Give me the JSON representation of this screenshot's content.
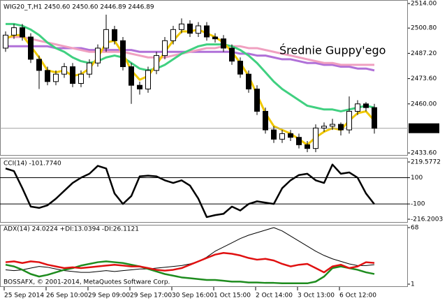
{
  "chart_data": [
    {
      "type": "candlestick",
      "title": "WIG20_T,H1 2450.60 2450.60 2446.89 2446.89",
      "annotation": "Średnie Guppy'ego",
      "copyright": "BOSSAFX, © 2001-2014, MetaQuotes Software Corp.",
      "categories": [
        "25 Sep 2014",
        null,
        null,
        null,
        null,
        "26 Sep 10:00",
        null,
        null,
        null,
        null,
        "29 Sep 09:00",
        null,
        null,
        null,
        null,
        "29 Sep 17:00",
        null,
        null,
        null,
        null,
        "30 Sep 16:00",
        null,
        null,
        null,
        null,
        "1 Oct 15:00",
        null,
        null,
        null,
        null,
        "2 Oct 14:00",
        null,
        null,
        null,
        null,
        "3 Oct 13:00",
        null,
        null,
        null,
        null,
        "6 Oct 12:00",
        null,
        null,
        null,
        null
      ],
      "open": [
        2490,
        2497,
        2501,
        2496,
        2484,
        2478,
        2472,
        2476,
        2480,
        2471,
        2476,
        2482,
        2490,
        2500,
        2494,
        2480,
        2470,
        2468,
        2478,
        2486,
        2494,
        2500,
        2503,
        2498,
        2502,
        2496,
        2495,
        2490,
        2483,
        2476,
        2468,
        2456,
        2446,
        2441,
        2444,
        2442,
        2438,
        2436,
        2447,
        2448,
        2449,
        2446,
        2456,
        2460,
        2458
      ],
      "high": [
        2499,
        2503,
        2503,
        2498,
        2486,
        2480,
        2478,
        2482,
        2482,
        2478,
        2484,
        2492,
        2508,
        2502,
        2496,
        2482,
        2472,
        2480,
        2488,
        2496,
        2502,
        2506,
        2505,
        2504,
        2504,
        2498,
        2497,
        2492,
        2485,
        2478,
        2470,
        2458,
        2448,
        2446,
        2446,
        2444,
        2440,
        2449,
        2450,
        2452,
        2450,
        2464,
        2462,
        2461,
        2460
      ],
      "low": [
        2488,
        2495,
        2494,
        2482,
        2468,
        2470,
        2470,
        2474,
        2469,
        2469,
        2474,
        2480,
        2488,
        2492,
        2478,
        2460,
        2465,
        2466,
        2476,
        2484,
        2492,
        2498,
        2496,
        2496,
        2494,
        2493,
        2488,
        2481,
        2474,
        2466,
        2454,
        2444,
        2439,
        2439,
        2440,
        2436,
        2434,
        2434,
        2445,
        2446,
        2443,
        2444,
        2454,
        2456,
        2444
      ],
      "close": [
        2497,
        2501,
        2496,
        2484,
        2478,
        2472,
        2476,
        2480,
        2471,
        2476,
        2482,
        2490,
        2500,
        2494,
        2480,
        2470,
        2468,
        2478,
        2486,
        2494,
        2500,
        2503,
        2498,
        2502,
        2496,
        2495,
        2490,
        2483,
        2476,
        2468,
        2456,
        2446,
        2441,
        2444,
        2442,
        2438,
        2436,
        2447,
        2448,
        2449,
        2446,
        2456,
        2460,
        2458,
        2446.89
      ],
      "series": [
        {
          "color": "#b070d8",
          "values": [
            2491,
            2491,
            2491,
            2491,
            2491,
            2491,
            2490,
            2490,
            2490,
            2490,
            2489,
            2489,
            2489,
            2489,
            2489,
            2489,
            2488,
            2488,
            2488,
            2488,
            2488,
            2488,
            2488,
            2488,
            2488,
            2488,
            2488,
            2488,
            2487,
            2487,
            2486,
            2486,
            2485,
            2484,
            2484,
            2483,
            2482,
            2482,
            2481,
            2481,
            2480,
            2480,
            2479,
            2479,
            2478
          ]
        },
        {
          "color": "#f0a0c0",
          "values": [
            2496,
            2496,
            2496,
            2495,
            2494,
            2493,
            2492,
            2491,
            2490,
            2489,
            2488,
            2488,
            2488,
            2488,
            2488,
            2487,
            2486,
            2485,
            2485,
            2485,
            2486,
            2487,
            2488,
            2489,
            2490,
            2490,
            2491,
            2491,
            2491,
            2490,
            2490,
            2489,
            2488,
            2487,
            2486,
            2485,
            2484,
            2483,
            2482,
            2482,
            2481,
            2481,
            2481,
            2481,
            2481
          ]
        },
        {
          "color": "#40d080",
          "values": [
            2503,
            2503,
            2502,
            2500,
            2497,
            2493,
            2490,
            2488,
            2485,
            2483,
            2482,
            2483,
            2485,
            2486,
            2485,
            2482,
            2479,
            2478,
            2479,
            2481,
            2484,
            2487,
            2489,
            2491,
            2492,
            2492,
            2492,
            2491,
            2489,
            2486,
            2482,
            2477,
            2472,
            2468,
            2465,
            2462,
            2459,
            2458,
            2457,
            2457,
            2456,
            2457,
            2458,
            2459,
            2458
          ]
        },
        {
          "color": "#f0c800",
          "values": [
            2495,
            2497,
            2497,
            2491,
            2485,
            2478,
            2477,
            2478,
            2475,
            2476,
            2479,
            2485,
            2493,
            2494,
            2487,
            2478,
            2473,
            2475,
            2481,
            2488,
            2494,
            2499,
            2499,
            2500,
            2498,
            2496,
            2493,
            2488,
            2482,
            2475,
            2465,
            2455,
            2448,
            2446,
            2444,
            2441,
            2438,
            2442,
            2445,
            2447,
            2446,
            2451,
            2455,
            2456,
            2451
          ]
        }
      ],
      "ylim": [
        2432.5,
        2515.9
      ],
      "yticks": [
        {
          "value": 2514,
          "label": "2514.00"
        },
        {
          "value": 2500.8,
          "label": "2500.80"
        },
        {
          "value": 2487.2,
          "label": "2487.20"
        },
        {
          "value": 2473.6,
          "label": "2473.60"
        },
        {
          "value": 2460,
          "label": "2460.00"
        },
        {
          "value": 2433.6,
          "label": "2433.60"
        }
      ]
    },
    {
      "type": "line",
      "title": "CCI(14) -101.7740",
      "color": "#000000",
      "values": [
        170,
        150,
        20,
        -120,
        -130,
        -110,
        -60,
        0,
        60,
        100,
        130,
        190,
        170,
        -20,
        -100,
        -40,
        110,
        115,
        110,
        80,
        60,
        80,
        40,
        -60,
        -200,
        -185,
        -175,
        -120,
        -150,
        -100,
        -80,
        -90,
        -100,
        20,
        80,
        120,
        130,
        80,
        60,
        200,
        130,
        140,
        100,
        -20,
        -101.774
      ],
      "ylim": [
        -216.2003,
        219.5772
      ],
      "yticks": [
        219.5772,
        100,
        -100,
        -216.2003
      ]
    },
    {
      "type": "line",
      "title": "ADX(14) 24.0224 +DI:13.0394 -DI:26.1121",
      "series": [
        {
          "color": "#000000",
          "values": [
            18,
            17,
            18,
            20,
            22,
            21,
            19,
            17,
            16,
            15,
            15,
            16,
            17,
            16,
            17,
            18,
            19,
            19,
            20,
            21,
            22,
            23,
            25,
            28,
            33,
            40,
            45,
            50,
            55,
            59,
            62,
            65,
            68,
            64,
            58,
            52,
            46,
            40,
            35,
            31,
            28,
            25,
            23,
            23,
            24.0224
          ]
        },
        {
          "color": "#1e8c1e",
          "values": [
            24,
            22,
            18,
            13,
            10,
            12,
            15,
            18,
            20,
            23,
            25,
            27,
            28,
            27,
            26,
            24,
            22,
            19,
            16,
            13,
            11,
            9,
            8,
            7,
            6,
            6,
            5,
            4,
            4,
            3,
            3,
            2.5,
            2.5,
            2,
            2,
            2,
            2,
            4,
            10,
            20,
            22,
            20,
            18,
            15,
            13.0394
          ]
        },
        {
          "color": "#e01010",
          "values": [
            27,
            28,
            26,
            28,
            27,
            24,
            22,
            20,
            21,
            20,
            21,
            22,
            23,
            24,
            23,
            22,
            22,
            20,
            18,
            17,
            18,
            20,
            24,
            28,
            32,
            36,
            38,
            37,
            35,
            32,
            30,
            31,
            29,
            25,
            22,
            24,
            25,
            20,
            15,
            22,
            24,
            20,
            22,
            27,
            26.1121
          ]
        }
      ],
      "ylim": [
        1,
        68
      ],
      "yticks": [
        68,
        1
      ]
    }
  ]
}
